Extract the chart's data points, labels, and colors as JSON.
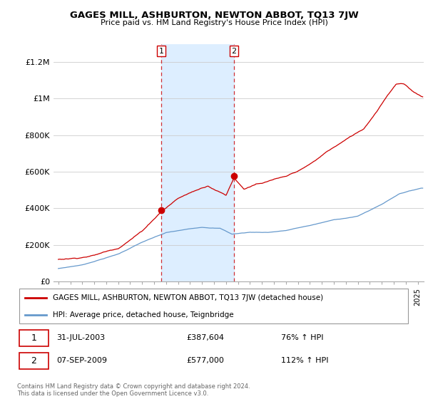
{
  "title": "GAGES MILL, ASHBURTON, NEWTON ABBOT, TQ13 7JW",
  "subtitle": "Price paid vs. HM Land Registry's House Price Index (HPI)",
  "legend_label_red": "GAGES MILL, ASHBURTON, NEWTON ABBOT, TQ13 7JW (detached house)",
  "legend_label_blue": "HPI: Average price, detached house, Teignbridge",
  "transaction1_date": "31-JUL-2003",
  "transaction1_price": "£387,604",
  "transaction1_hpi": "76% ↑ HPI",
  "transaction2_date": "07-SEP-2009",
  "transaction2_price": "£577,000",
  "transaction2_hpi": "112% ↑ HPI",
  "footnote": "Contains HM Land Registry data © Crown copyright and database right 2024.\nThis data is licensed under the Open Government Licence v3.0.",
  "ylim": [
    0,
    1300000
  ],
  "yticks": [
    0,
    200000,
    400000,
    600000,
    800000,
    1000000,
    1200000
  ],
  "ytick_labels": [
    "£0",
    "£200K",
    "£400K",
    "£600K",
    "£800K",
    "£1M",
    "£1.2M"
  ],
  "shade_x1_start": 2003.58,
  "shade_x1_end": 2009.67,
  "red_color": "#cc0000",
  "blue_color": "#6699cc",
  "shade_color": "#ddeeff",
  "transaction1_x": 2003.58,
  "transaction1_y": 387604,
  "transaction2_x": 2009.67,
  "transaction2_y": 577000,
  "xmin": 1995.0,
  "xmax": 2025.5
}
